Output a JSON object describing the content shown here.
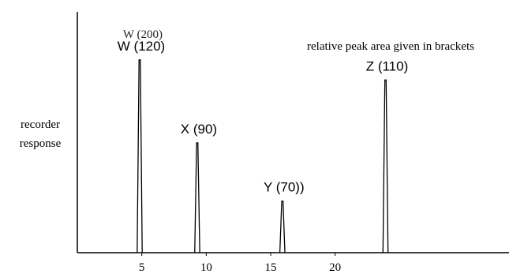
{
  "chart_data": {
    "type": "line",
    "ylabel_lines": [
      "recorder",
      "response"
    ],
    "annotation": "relative peak area given in brackets",
    "ghost_label": "W (200)",
    "xtick_labels": [
      "5",
      "10",
      "15",
      "20"
    ],
    "xlim": [
      0,
      36
    ],
    "ylim": [
      0,
      1
    ],
    "peaks": [
      {
        "label": "W (120)",
        "x": 5.2,
        "height": 0.86
      },
      {
        "label": "X (90)",
        "x": 10.0,
        "height": 0.49
      },
      {
        "label": "Y (70))",
        "x": 17.1,
        "height": 0.23
      },
      {
        "label": "Z (110)",
        "x": 25.7,
        "height": 0.77
      }
    ],
    "tick_positions": [
      5,
      10,
      15,
      20
    ]
  }
}
